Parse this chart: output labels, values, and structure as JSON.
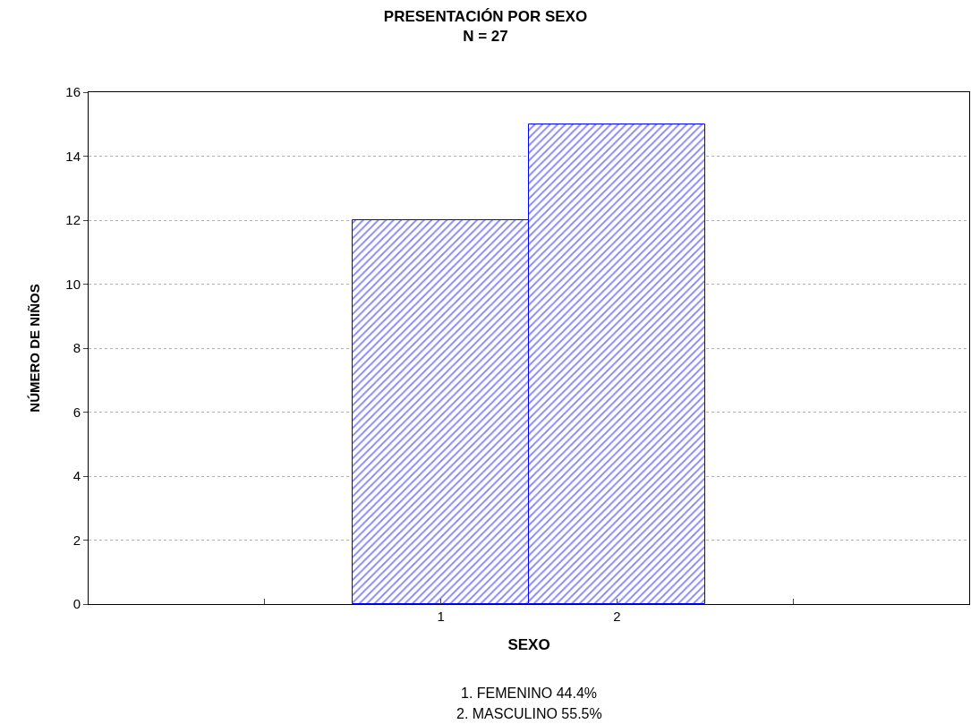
{
  "chart_data": {
    "type": "bar",
    "title": "PRESENTACIÓN POR SEXO",
    "subtitle": "N = 27",
    "xlabel": "SEXO",
    "ylabel": "NÚMERO DE NIÑOS",
    "x": [
      1,
      2
    ],
    "values": [
      12,
      15
    ],
    "color": "#0000ff",
    "xlim": [
      -1,
      4
    ],
    "xticks": [
      {
        "value": 0,
        "label": null
      },
      1,
      2,
      {
        "value": 3,
        "label": null
      }
    ],
    "ylim": [
      0,
      16
    ],
    "yticks": [
      0,
      2,
      4,
      6,
      8,
      10,
      12,
      14,
      16
    ],
    "grid": "y",
    "annotations": [
      "1. FEMENINO 44.4%",
      "2. MASCULINO 55.5%"
    ]
  }
}
